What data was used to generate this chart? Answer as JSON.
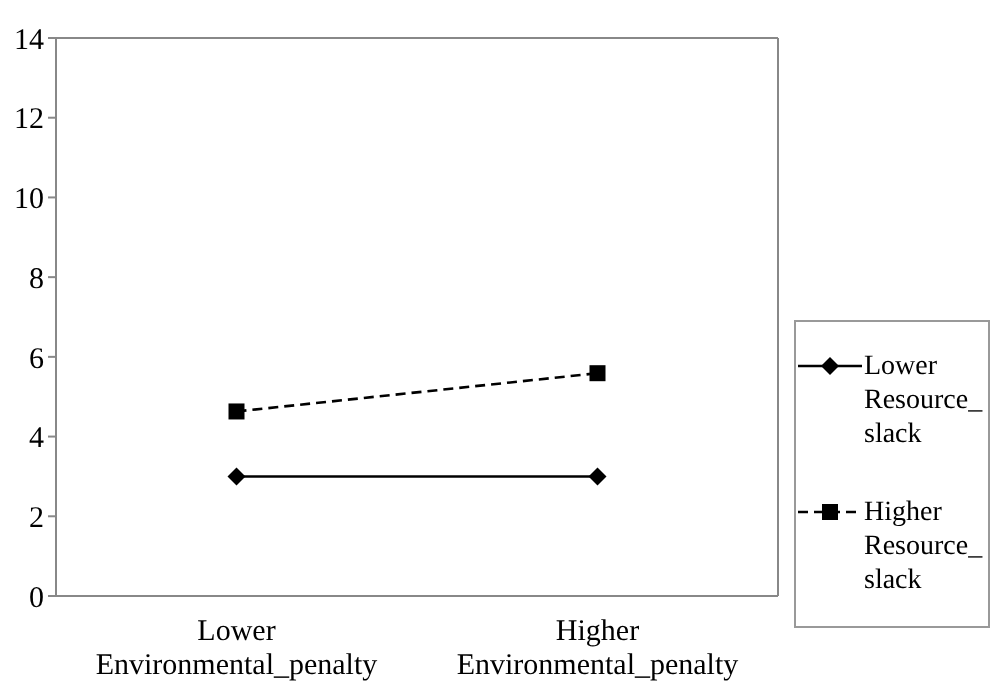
{
  "chart_data": {
    "type": "line",
    "categories": [
      "Lower Environmental_penalty",
      "Higher Environmental_penalty"
    ],
    "series": [
      {
        "name": "Lower Resource_slack",
        "color": "#000000",
        "values": [
          3,
          3
        ],
        "marker": "diamond",
        "line_style": "solid"
      },
      {
        "name": "Higher Resource_slack",
        "color": "#000000",
        "values": [
          4.63,
          5.59
        ],
        "marker": "square",
        "line_style": "dashed"
      }
    ],
    "ylim": [
      0,
      14
    ],
    "yticks": [
      0,
      2,
      4,
      6,
      8,
      10,
      12,
      14
    ],
    "grid": false,
    "legend": "right"
  }
}
